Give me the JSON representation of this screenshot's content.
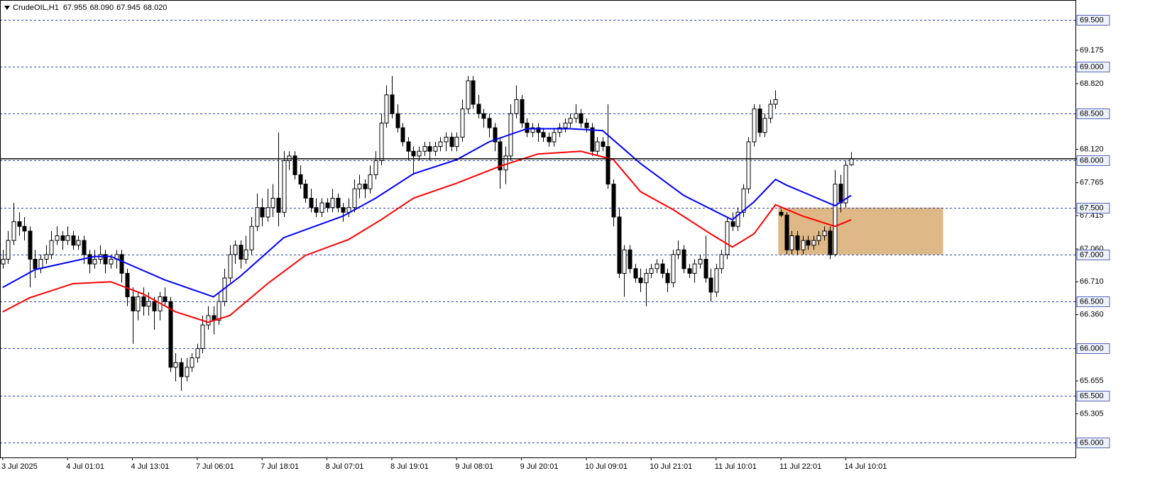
{
  "chart_data": {
    "type": "candlestick",
    "header": {
      "symbol": "CrudeOIL,H1",
      "quote": [
        "67.955",
        "68.090",
        "67.945",
        "68.020"
      ]
    },
    "xlim": [
      -0.5,
      198.5
    ],
    "ylim": [
      64.84,
      69.71
    ],
    "xticks": [
      {
        "value": 0,
        "label": "3 Jul 2025"
      },
      {
        "value": 12,
        "label": "4 Jul 01:01"
      },
      {
        "value": 24,
        "label": "4 Jul 13:01"
      },
      {
        "value": 36,
        "label": "7 Jul 06:01"
      },
      {
        "value": 48,
        "label": "7 Jul 18:01"
      },
      {
        "value": 60,
        "label": "8 Jul 07:01"
      },
      {
        "value": 72,
        "label": "8 Jul 19:01"
      },
      {
        "value": 84,
        "label": "9 Jul 08:01"
      },
      {
        "value": 96,
        "label": "9 Jul 20:01"
      },
      {
        "value": 108,
        "label": "10 Jul 09:01"
      },
      {
        "value": 120,
        "label": "10 Jul 21:01"
      },
      {
        "value": 132,
        "label": "11 Jul 10:01"
      },
      {
        "value": 144,
        "label": "11 Jul 22:01"
      },
      {
        "value": 156,
        "label": "14 Jul 10:01"
      }
    ],
    "yticks": [
      {
        "value": 69.175,
        "label": "69.175"
      },
      {
        "value": 68.82,
        "label": "68.820"
      },
      {
        "value": 68.12,
        "label": "68.120"
      },
      {
        "value": 67.765,
        "label": "67.765"
      },
      {
        "value": 67.415,
        "label": "67.415"
      },
      {
        "value": 67.06,
        "label": "67.060"
      },
      {
        "value": 66.71,
        "label": "66.710"
      },
      {
        "value": 66.36,
        "label": "66.360"
      },
      {
        "value": 65.655,
        "label": "65.655"
      },
      {
        "value": 65.305,
        "label": "65.305"
      }
    ],
    "levels": [
      {
        "value": 69.5,
        "label": "69.500"
      },
      {
        "value": 69,
        "label": "69.000"
      },
      {
        "value": 68.5,
        "label": "68.500"
      },
      {
        "value": 68,
        "label": "68.000"
      },
      {
        "value": 67.5,
        "label": "67.500"
      },
      {
        "value": 67,
        "label": "67.000"
      },
      {
        "value": 66.5,
        "label": "66.500"
      },
      {
        "value": 66,
        "label": "66.000"
      },
      {
        "value": 65.5,
        "label": "65.500"
      },
      {
        "value": 65,
        "label": "65.000"
      }
    ],
    "level_color": "#2b3fa8",
    "zone": {
      "x": [
        143.5,
        174
      ],
      "y": [
        67.0,
        67.5
      ],
      "color": "#deb887"
    },
    "bull_color": "#ffffff",
    "bear_color": "#000000",
    "ohlc": [
      [
        66.9,
        67.05,
        66.85,
        66.95
      ],
      [
        66.95,
        67.25,
        66.9,
        67.15
      ],
      [
        67.15,
        67.55,
        67.1,
        67.35
      ],
      [
        67.35,
        67.45,
        67.2,
        67.3
      ],
      [
        67.3,
        67.4,
        67.15,
        67.25
      ],
      [
        67.25,
        67.3,
        66.65,
        66.95
      ],
      [
        66.95,
        67.05,
        66.75,
        66.85
      ],
      [
        66.85,
        67.0,
        66.8,
        66.95
      ],
      [
        66.95,
        67.1,
        66.9,
        67.0
      ],
      [
        67.0,
        67.25,
        66.95,
        67.15
      ],
      [
        67.15,
        67.3,
        67.1,
        67.2
      ],
      [
        67.2,
        67.25,
        67.05,
        67.15
      ],
      [
        67.15,
        67.3,
        67.1,
        67.2
      ],
      [
        67.2,
        67.25,
        67.05,
        67.1
      ],
      [
        67.1,
        67.2,
        67.05,
        67.15
      ],
      [
        67.15,
        67.2,
        66.9,
        67.0
      ],
      [
        67.0,
        67.05,
        66.8,
        66.9
      ],
      [
        66.9,
        67.05,
        66.85,
        66.95
      ],
      [
        66.95,
        67.1,
        66.9,
        67.0
      ],
      [
        67.0,
        67.05,
        66.8,
        66.9
      ],
      [
        66.9,
        67.0,
        66.85,
        66.95
      ],
      [
        66.95,
        67.05,
        66.85,
        67.0
      ],
      [
        67.0,
        67.05,
        66.7,
        66.8
      ],
      [
        66.8,
        66.85,
        66.45,
        66.55
      ],
      [
        66.55,
        66.65,
        66.05,
        66.4
      ],
      [
        66.4,
        66.6,
        66.3,
        66.55
      ],
      [
        66.55,
        66.65,
        66.35,
        66.45
      ],
      [
        66.45,
        66.6,
        66.35,
        66.5
      ],
      [
        66.5,
        66.55,
        66.2,
        66.4
      ],
      [
        66.4,
        66.6,
        66.3,
        66.55
      ],
      [
        66.55,
        66.65,
        66.45,
        66.5
      ],
      [
        66.5,
        66.55,
        65.75,
        65.8
      ],
      [
        65.8,
        65.95,
        65.65,
        65.85
      ],
      [
        65.85,
        65.9,
        65.55,
        65.7
      ],
      [
        65.7,
        65.9,
        65.65,
        65.8
      ],
      [
        65.8,
        65.95,
        65.75,
        65.9
      ],
      [
        65.9,
        66.05,
        65.85,
        66.0
      ],
      [
        66.0,
        66.35,
        65.95,
        66.25
      ],
      [
        66.25,
        66.45,
        66.2,
        66.35
      ],
      [
        66.35,
        66.45,
        66.15,
        66.3
      ],
      [
        66.3,
        66.6,
        66.25,
        66.5
      ],
      [
        66.5,
        66.85,
        66.45,
        66.75
      ],
      [
        66.75,
        67.1,
        66.7,
        67.0
      ],
      [
        67.0,
        67.15,
        66.9,
        67.1
      ],
      [
        67.1,
        67.15,
        66.85,
        66.95
      ],
      [
        66.95,
        67.2,
        66.9,
        67.05
      ],
      [
        67.05,
        67.4,
        67.0,
        67.3
      ],
      [
        67.3,
        67.65,
        67.25,
        67.5
      ],
      [
        67.5,
        67.6,
        67.3,
        67.4
      ],
      [
        67.4,
        67.7,
        67.35,
        67.5
      ],
      [
        67.5,
        67.75,
        67.4,
        67.6
      ],
      [
        67.6,
        68.3,
        67.3,
        67.45
      ],
      [
        67.45,
        68.1,
        67.4,
        68.0
      ],
      [
        68.0,
        68.1,
        67.9,
        68.05
      ],
      [
        68.05,
        68.1,
        67.8,
        67.85
      ],
      [
        67.85,
        67.95,
        67.7,
        67.75
      ],
      [
        67.75,
        67.8,
        67.55,
        67.6
      ],
      [
        67.6,
        67.7,
        67.45,
        67.5
      ],
      [
        67.5,
        67.6,
        67.4,
        67.45
      ],
      [
        67.45,
        67.6,
        67.4,
        67.55
      ],
      [
        67.55,
        67.6,
        67.45,
        67.5
      ],
      [
        67.5,
        67.7,
        67.45,
        67.6
      ],
      [
        67.6,
        67.65,
        67.45,
        67.5
      ],
      [
        67.5,
        67.55,
        67.35,
        67.45
      ],
      [
        67.45,
        67.6,
        67.4,
        67.5
      ],
      [
        67.5,
        67.8,
        67.45,
        67.7
      ],
      [
        67.7,
        67.85,
        67.6,
        67.75
      ],
      [
        67.75,
        67.8,
        67.6,
        67.7
      ],
      [
        67.7,
        67.95,
        67.65,
        67.85
      ],
      [
        67.85,
        68.1,
        67.8,
        68.0
      ],
      [
        68.0,
        68.5,
        67.95,
        68.4
      ],
      [
        68.4,
        68.8,
        68.35,
        68.7
      ],
      [
        68.7,
        68.9,
        68.45,
        68.5
      ],
      [
        68.5,
        68.6,
        68.3,
        68.35
      ],
      [
        68.35,
        68.4,
        68.15,
        68.2
      ],
      [
        68.2,
        68.25,
        68.0,
        68.1
      ],
      [
        68.1,
        68.15,
        67.85,
        68.05
      ],
      [
        68.05,
        68.15,
        68.0,
        68.1
      ],
      [
        68.1,
        68.2,
        68.05,
        68.15
      ],
      [
        68.15,
        68.2,
        68.0,
        68.1
      ],
      [
        68.1,
        68.2,
        68.05,
        68.15
      ],
      [
        68.15,
        68.25,
        68.1,
        68.2
      ],
      [
        68.2,
        68.3,
        68.1,
        68.25
      ],
      [
        68.25,
        68.3,
        68.1,
        68.15
      ],
      [
        68.15,
        68.3,
        68.1,
        68.25
      ],
      [
        68.25,
        68.65,
        68.2,
        68.55
      ],
      [
        68.55,
        68.9,
        68.5,
        68.85
      ],
      [
        68.85,
        68.9,
        68.55,
        68.6
      ],
      [
        68.6,
        68.7,
        68.45,
        68.5
      ],
      [
        68.5,
        68.55,
        68.35,
        68.45
      ],
      [
        68.45,
        68.5,
        68.25,
        68.35
      ],
      [
        68.35,
        68.4,
        68.1,
        68.2
      ],
      [
        68.2,
        68.25,
        67.7,
        67.9
      ],
      [
        67.9,
        68.15,
        67.75,
        68.05
      ],
      [
        68.05,
        68.6,
        68.0,
        68.5
      ],
      [
        68.5,
        68.8,
        68.45,
        68.65
      ],
      [
        68.65,
        68.7,
        68.35,
        68.4
      ],
      [
        68.4,
        68.45,
        68.25,
        68.3
      ],
      [
        68.3,
        68.4,
        68.25,
        68.35
      ],
      [
        68.35,
        68.4,
        68.2,
        68.3
      ],
      [
        68.3,
        68.35,
        68.2,
        68.25
      ],
      [
        68.25,
        68.3,
        68.15,
        68.2
      ],
      [
        68.2,
        68.35,
        68.15,
        68.3
      ],
      [
        68.3,
        68.4,
        68.25,
        68.35
      ],
      [
        68.35,
        68.45,
        68.3,
        68.4
      ],
      [
        68.4,
        68.5,
        68.35,
        68.45
      ],
      [
        68.45,
        68.6,
        68.4,
        68.5
      ],
      [
        68.5,
        68.55,
        68.35,
        68.4
      ],
      [
        68.4,
        68.45,
        68.3,
        68.35
      ],
      [
        68.35,
        68.4,
        68.05,
        68.1
      ],
      [
        68.1,
        68.25,
        68.05,
        68.2
      ],
      [
        68.2,
        68.25,
        68.1,
        68.15
      ],
      [
        68.15,
        68.6,
        67.7,
        67.75
      ],
      [
        67.75,
        67.8,
        67.3,
        67.4
      ],
      [
        67.4,
        67.5,
        66.75,
        66.8
      ],
      [
        66.8,
        67.1,
        66.55,
        67.05
      ],
      [
        67.05,
        67.1,
        66.8,
        66.85
      ],
      [
        66.85,
        66.9,
        66.7,
        66.75
      ],
      [
        66.75,
        66.85,
        66.6,
        66.7
      ],
      [
        66.7,
        66.85,
        66.45,
        66.8
      ],
      [
        66.8,
        66.9,
        66.75,
        66.85
      ],
      [
        66.85,
        66.95,
        66.8,
        66.9
      ],
      [
        66.9,
        66.95,
        66.75,
        66.8
      ],
      [
        66.8,
        66.85,
        66.6,
        66.7
      ],
      [
        66.7,
        67.05,
        66.65,
        67.0
      ],
      [
        67.0,
        67.15,
        66.95,
        67.05
      ],
      [
        67.05,
        67.1,
        66.8,
        66.85
      ],
      [
        66.85,
        66.9,
        66.75,
        66.8
      ],
      [
        66.8,
        66.95,
        66.7,
        66.9
      ],
      [
        66.9,
        67.0,
        66.85,
        66.95
      ],
      [
        66.95,
        67.2,
        66.7,
        66.75
      ],
      [
        66.75,
        66.85,
        66.5,
        66.6
      ],
      [
        66.6,
        66.9,
        66.55,
        66.85
      ],
      [
        66.85,
        67.05,
        66.8,
        67.0
      ],
      [
        67.0,
        67.4,
        66.95,
        67.35
      ],
      [
        67.35,
        67.45,
        67.25,
        67.3
      ],
      [
        67.3,
        67.5,
        67.25,
        67.45
      ],
      [
        67.45,
        67.75,
        67.4,
        67.7
      ],
      [
        67.7,
        68.25,
        67.65,
        68.2
      ],
      [
        68.2,
        68.6,
        68.15,
        68.55
      ],
      [
        68.55,
        68.6,
        68.25,
        68.3
      ],
      [
        68.3,
        68.5,
        68.25,
        68.45
      ],
      [
        68.45,
        68.65,
        68.4,
        68.6
      ],
      [
        68.6,
        68.75,
        68.55,
        68.65
      ],
      [
        67.45,
        67.48,
        67.4,
        67.42
      ],
      [
        67.42,
        67.45,
        67.0,
        67.05
      ],
      [
        67.05,
        67.25,
        67.0,
        67.2
      ],
      [
        67.2,
        67.25,
        67.0,
        67.05
      ],
      [
        67.05,
        67.2,
        67.0,
        67.15
      ],
      [
        67.15,
        67.2,
        67.05,
        67.1
      ],
      [
        67.1,
        67.2,
        67.05,
        67.15
      ],
      [
        67.15,
        67.25,
        67.1,
        67.2
      ],
      [
        67.2,
        67.3,
        67.15,
        67.25
      ],
      [
        67.25,
        67.3,
        66.95,
        67.0
      ],
      [
        67.0,
        67.9,
        66.98,
        67.75
      ],
      [
        67.75,
        67.85,
        67.45,
        67.55
      ],
      [
        67.55,
        68.0,
        67.5,
        67.95
      ],
      [
        67.955,
        68.09,
        67.945,
        68.02
      ]
    ],
    "ma": [
      {
        "color": "#0000ff",
        "x": [
          0,
          6,
          17,
          20,
          30,
          39,
          44,
          52,
          63,
          69,
          76,
          84,
          90,
          97,
          105,
          111,
          118,
          126,
          135,
          139,
          143,
          145,
          154,
          157
        ],
        "values": [
          66.65,
          66.84,
          66.98,
          66.98,
          66.73,
          66.55,
          66.77,
          67.18,
          67.41,
          67.6,
          67.86,
          68.01,
          68.2,
          68.34,
          68.34,
          68.32,
          67.97,
          67.63,
          67.37,
          67.56,
          67.8,
          67.74,
          67.52,
          67.63
        ]
      },
      {
        "color": "#ff0000",
        "x": [
          0,
          5,
          13,
          20,
          26,
          32,
          38,
          42,
          49,
          56,
          64,
          70,
          76,
          84,
          92,
          99,
          107,
          113,
          118,
          124,
          131,
          135,
          139,
          143,
          148,
          154,
          157
        ],
        "values": [
          66.39,
          66.54,
          66.69,
          66.71,
          66.58,
          66.39,
          66.28,
          66.35,
          66.69,
          66.99,
          67.16,
          67.37,
          67.6,
          67.76,
          67.94,
          68.07,
          68.1,
          68.01,
          67.67,
          67.48,
          67.22,
          67.08,
          67.22,
          67.53,
          67.41,
          67.3,
          67.37
        ]
      }
    ]
  }
}
